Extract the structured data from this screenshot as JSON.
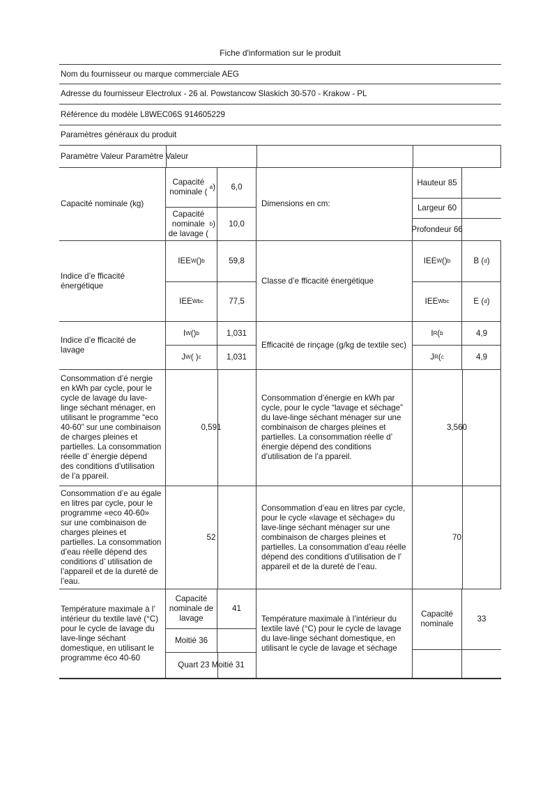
{
  "title": "Fiche d'information sur le produit",
  "general": {
    "supplier": "Nom du fournisseur ou marque commerciale AEG",
    "address": "Adresse du fournisseur Electrolux - 26 al. Powstancow Slaskich 30-570 - Krakow - PL",
    "model": "Référence du modèle L8WEC06S 914605229",
    "section_title": "Paramètres généraux du produit",
    "columns_header": "Paramètre Valeur Paramètre Valeur"
  },
  "capacity": {
    "row_label": "Capacité nominale (kg)",
    "rated": {
      "base": "Capacité nominale (",
      "sup": "a",
      "tail": ")"
    },
    "rated_value": "6,0",
    "wash": {
      "base": "Capacité nominale de lavage (",
      "sup": "b",
      "tail": ")"
    },
    "wash_value": "10,0",
    "dimensions_label": "Dimensions en cm:",
    "height": "Hauteur 85",
    "width": "Largeur 60",
    "depth": "Profondeur 66"
  },
  "energy_efficiency": {
    "row_label": "Indice d’e fficacité énergétique",
    "eei_w": {
      "base": "IEE",
      "sub": "W",
      "mid": "()",
      "sup": "b"
    },
    "eei_w_value": "59,8",
    "eei_wd": {
      "base": "IEE",
      "sub": "Wb",
      "mid": " ",
      "sup": "c"
    },
    "eei_wd_value": "77,5",
    "class_label": "Classe d’e fficacité énergétique",
    "class_w": {
      "base": "B (",
      "sup": "d",
      "tail": ")"
    },
    "class_wd": {
      "base": "E (",
      "sup": "d",
      "tail": ")"
    }
  },
  "washing_efficiency": {
    "row_label": "Indice d’e fficacité de lavage",
    "iw": {
      "base": "I",
      "sub": "W",
      "mid": "()",
      "sup": "b"
    },
    "iw_value": "1,031",
    "jw": {
      "base": "J",
      "sub": "W",
      "mid": "( )",
      "sup": "c"
    },
    "jw_value": "1,031",
    "rinse_label": "Efficacité de rinçage (g/kg de textile sec)",
    "ir": {
      "base": "I",
      "sub": "R",
      "mid": " (",
      "sup": "b"
    },
    "ir_value": "4,9",
    "jr": {
      "base": "J",
      "sub": "R",
      "mid": " (",
      "sup": "c"
    },
    "jr_value": "4,9"
  },
  "energy_consumption": {
    "wash_text": "Consommation d’é nergie en kWh par cycle, pour le cycle de lavage du lave- linge séchant ménager, en utilisant le programme “eco 40-60” sur une combinaison de charges pleines et partielles. La consommation réelle d’ énergie dépend des conditions d’utilisation de l’a ppareil.",
    "wash_value": "0,591",
    "wash_dry_text": "Consommation d’énergie en kWh par cycle, pour le cycle “lavage et séchage” du lave-linge séchant ménager sur une combinaison de charges pleines et partielles. La consommation réelle d’ énergie dépend des conditions d’utilisation de l’a ppareil.",
    "wash_dry_value": "3,560"
  },
  "water_consumption": {
    "wash_text": "Consommation d’e au égale en litres par cycle, pour le programme «eco 40-60» sur une combinaison de charges pleines et partielles. La consommation d’eau réelle dépend des conditions d’ utilisation de l’appareil et de la dureté de l’eau.",
    "wash_value": "52",
    "wash_dry_text": "Consommation d’eau en litres par cycle, pour le cycle «lavage et séchage» du lave-linge séchant ménager sur une combinaison de charges pleines et partielles. La consommation d’eau réelle dépend des conditions d’utilisation de l’ appareil et de la dureté de l’eau.",
    "wash_dry_value": "70"
  },
  "max_temperature": {
    "wash_text": "Température maximale à l’ intérieur du textile lavé (°C) pour le cycle de lavage du lave-linge séchant domestique, en utilisant le programme éco 40-60",
    "rated_wash_label": "Capacité nominale de lavage",
    "rated_wash_value": "41",
    "half_label": "Moitié 36",
    "quarter_label": "Quart 23 Moitié 31",
    "wash_dry_text": "Température maximale à l’intérieur du textile lavé (°C) pour le cycle de lavage du lave-linge séchant domestique, en utilisant le cycle de lavage et séchage",
    "rated_label": "Capacité nominale",
    "rated_value": "33"
  }
}
